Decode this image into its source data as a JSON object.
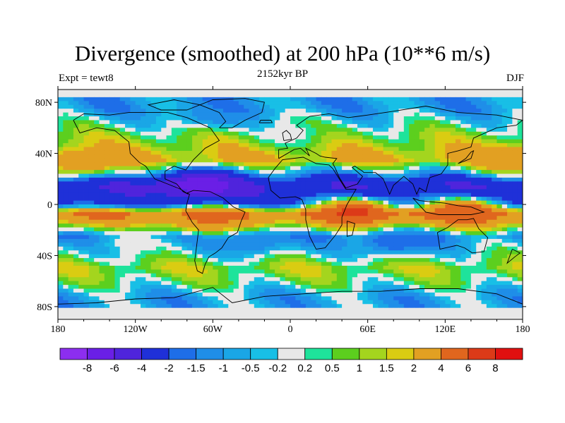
{
  "chart_data": {
    "type": "heatmap",
    "title": "Divergence (smoothed) at 200 hPa (10**6 m/s)",
    "subtitle_left": "Expt = tewt8",
    "subtitle_center": "2152kyr BP",
    "subtitle_right": "DJF",
    "x_ticks": [
      {
        "value": -180,
        "label": "180"
      },
      {
        "value": -120,
        "label": "120W"
      },
      {
        "value": -60,
        "label": "60W"
      },
      {
        "value": 0,
        "label": "0"
      },
      {
        "value": 60,
        "label": "60E"
      },
      {
        "value": 120,
        "label": "120E"
      },
      {
        "value": 180,
        "label": "180"
      }
    ],
    "y_ticks": [
      {
        "value": 80,
        "label": "80N"
      },
      {
        "value": 40,
        "label": "40N"
      },
      {
        "value": 0,
        "label": "0"
      },
      {
        "value": -40,
        "label": "40S"
      },
      {
        "value": -80,
        "label": "80S"
      }
    ],
    "xlim": [
      -180,
      180
    ],
    "ylim": [
      -90,
      90
    ],
    "levels": [
      "-8",
      "-6",
      "-4",
      "-2",
      "-1.5",
      "-1",
      "-0.5",
      "-0.2",
      "0.2",
      "0.5",
      "1",
      "1.5",
      "2",
      "4",
      "6",
      "8"
    ],
    "colors": [
      "#8c2ef0",
      "#6a1fe6",
      "#4f24dc",
      "#1f30d8",
      "#1e6ee8",
      "#1f8ee8",
      "#1aa6e6",
      "#18bfe6",
      "#e8e8e8",
      "#1ee39b",
      "#5ccf1e",
      "#a4d51e",
      "#dacc12",
      "#e2a022",
      "#e0661e",
      "#dc3a18",
      "#e01010"
    ],
    "bands": [
      {
        "lat": 75,
        "value": -1.0
      },
      {
        "lat": 55,
        "value": 0.8
      },
      {
        "lat": 35,
        "value": 2.2
      },
      {
        "lat": 15,
        "value": -4.0
      },
      {
        "lat": 0,
        "value": -2.5
      },
      {
        "lat": -8,
        "value": 4.5
      },
      {
        "lat": -25,
        "value": -1.2
      },
      {
        "lat": -50,
        "value": 1.2
      },
      {
        "lat": -62,
        "value": 0.3
      },
      {
        "lat": -72,
        "value": -0.8
      }
    ],
    "blobs": [
      {
        "lon": 50,
        "lat": -5,
        "value": 6.5
      },
      {
        "lon": 135,
        "lat": -5,
        "value": 6
      },
      {
        "lon": -60,
        "lat": -12,
        "value": 4.5
      },
      {
        "lon": -70,
        "lat": 15,
        "value": -7.5
      },
      {
        "lon": -160,
        "lat": 33,
        "value": 3.5
      },
      {
        "lon": 170,
        "lat": 35,
        "value": 3.5
      },
      {
        "lon": 0,
        "lat": 55,
        "value": 0.0
      },
      {
        "lon": -60,
        "lat": 70,
        "value": -1.5
      },
      {
        "lon": -30,
        "lat": -30,
        "value": -1.5
      },
      {
        "lon": 80,
        "lat": -30,
        "value": -2
      },
      {
        "lon": -120,
        "lat": -30,
        "value": 0.0
      }
    ]
  }
}
